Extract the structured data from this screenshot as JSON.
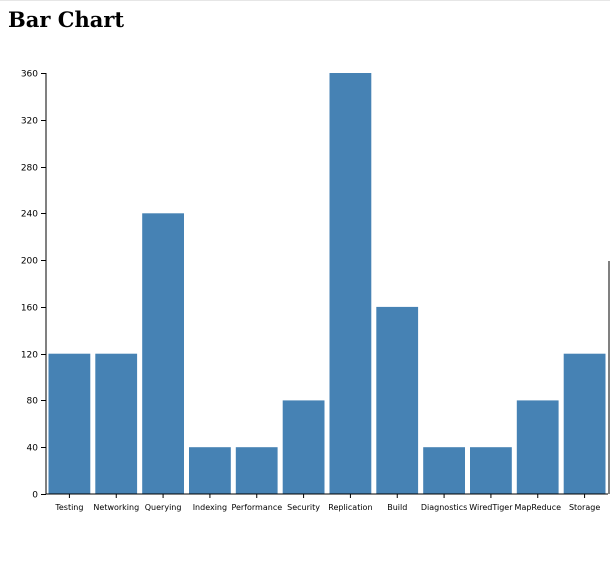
{
  "page": {
    "title": "Bar Chart"
  },
  "chart_data": {
    "type": "bar",
    "title": "",
    "xlabel": "",
    "ylabel": "",
    "categories": [
      "Testing",
      "Networking",
      "Querying",
      "Indexing",
      "Performance",
      "Security",
      "Replication",
      "Build",
      "Diagnostics",
      "WiredTiger",
      "MapReduce",
      "Storage"
    ],
    "values": [
      120,
      120,
      240,
      40,
      40,
      80,
      360,
      160,
      40,
      40,
      80,
      120
    ],
    "ylim": [
      0,
      360
    ],
    "yticks": [
      0,
      40,
      80,
      120,
      160,
      200,
      240,
      280,
      320,
      360
    ],
    "ytick_labels": [
      "0",
      "40",
      "80",
      "120",
      "160",
      "200",
      "240",
      "280",
      "320",
      "360"
    ],
    "grid": false,
    "legend": "none",
    "bar_color": "#4682b4",
    "axis_color": "#000000"
  }
}
